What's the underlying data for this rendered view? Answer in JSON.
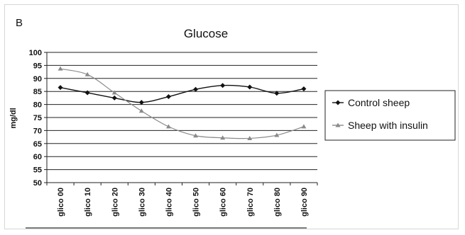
{
  "panel_label": "B",
  "chart_data": {
    "type": "line",
    "title": "Glucose",
    "xlabel": "",
    "ylabel": "mg/dl",
    "categories": [
      "glico 00",
      "glico 10",
      "glico 20",
      "glico 30",
      "glico 40",
      "glico 50",
      "glico 60",
      "glico 70",
      "glico 80",
      "glico 90"
    ],
    "ylim": [
      50,
      100
    ],
    "yticks": [
      50,
      55,
      60,
      65,
      70,
      75,
      80,
      85,
      90,
      95,
      100
    ],
    "grid": true,
    "legend_position": "right",
    "series": [
      {
        "name": "Control sheep",
        "color": "#111111",
        "marker": "diamond",
        "x": [
          0.5,
          1.5,
          2.5,
          3.5,
          4.5,
          5.5,
          6.5,
          7.5,
          8.5,
          9.5
        ],
        "values": [
          86.5,
          84.5,
          82.5,
          80.8,
          83,
          85.8,
          87.3,
          86.7,
          84.3,
          86
        ]
      },
      {
        "name": "Sheep with insulin",
        "color": "#8a8a8a",
        "marker": "triangle",
        "x": [
          0.5,
          1.5,
          2.5,
          3.5,
          4.5,
          5.5,
          6.5,
          7.5,
          8.5,
          9.5
        ],
        "values": [
          93.7,
          91.5,
          84.5,
          77.5,
          71.5,
          68,
          67.2,
          67,
          68.2,
          71.5
        ]
      }
    ]
  }
}
